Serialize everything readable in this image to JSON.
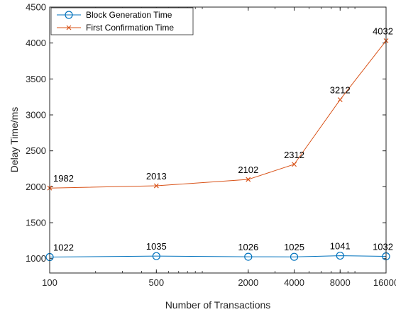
{
  "chart_data": {
    "type": "line",
    "title": "",
    "xlabel": "Number of Transactions",
    "ylabel": "Delay Time/ms",
    "x_scale": "log",
    "x": [
      100,
      500,
      2000,
      4000,
      8000,
      16000
    ],
    "x_tick_labels": [
      "100",
      "500",
      "2000",
      "4000",
      "8000",
      "16000"
    ],
    "xlim": [
      100,
      16000
    ],
    "ylim": [
      800,
      4500
    ],
    "y_ticks": [
      1000,
      1500,
      2000,
      2500,
      3000,
      3500,
      4000,
      4500
    ],
    "grid": false,
    "legend_position": "top-left",
    "series": [
      {
        "name": "Block Generation Time",
        "values": [
          1022,
          1035,
          1026,
          1025,
          1041,
          1032
        ],
        "labels": [
          "1022",
          "1035",
          "1026",
          "1025",
          "1041",
          "1032"
        ],
        "color": "#0072BD",
        "marker": "circle"
      },
      {
        "name": "First Confirmation Time",
        "values": [
          1982,
          2013,
          2102,
          2312,
          3212,
          4032
        ],
        "labels": [
          "1982",
          "2013",
          "2102",
          "2312",
          "3212",
          "4032"
        ],
        "color": "#D95319",
        "marker": "x"
      }
    ]
  }
}
